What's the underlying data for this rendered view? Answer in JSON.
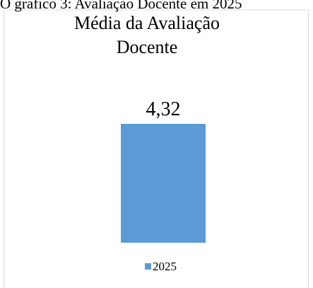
{
  "chart_data": {
    "type": "bar",
    "caption": "O gráfico 3: Avaliação Docente em 2025",
    "title": "Média da Avaliação Docente",
    "categories": [
      null
    ],
    "series": [
      {
        "name": "2025",
        "color": "#5b9bd5",
        "values": [
          4.32
        ],
        "value_labels": [
          "4,32"
        ]
      }
    ],
    "ylim": [
      0,
      5
    ],
    "legend": "bottom"
  }
}
